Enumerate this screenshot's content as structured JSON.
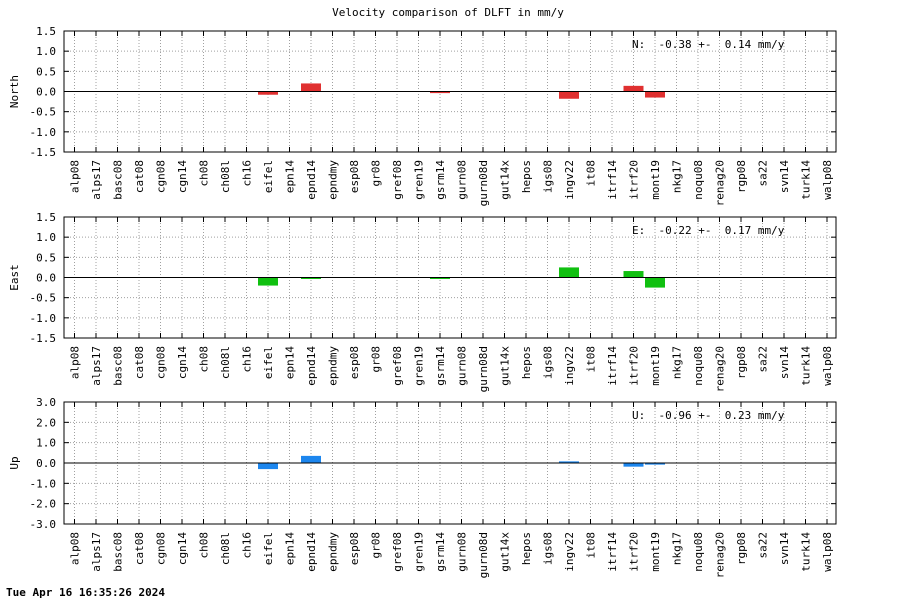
{
  "title": "Velocity comparison of DLFT in mm/y",
  "timestamp": "Tue Apr 16 16:35:26 2024",
  "chart_data": [
    {
      "type": "bar",
      "ylabel": "North",
      "ylim": [
        -1.5,
        1.5
      ],
      "yticks": [
        "1.5",
        "1.0",
        "0.5",
        "0.0",
        "-0.5",
        "-1.0",
        "-1.5"
      ],
      "ytick_values": [
        1.5,
        1.0,
        0.5,
        0.0,
        -0.5,
        -1.0,
        -1.5
      ],
      "grid": true,
      "color": "#e03030",
      "annotation": "N:  -0.38 +-  0.14 mm/y",
      "categories": [
        "alp08",
        "alps17",
        "basc08",
        "cat08",
        "cgn08",
        "cgn14",
        "ch08",
        "ch08l",
        "ch16",
        "eifel",
        "epn14",
        "epnd14",
        "epndmy",
        "esp08",
        "gr08",
        "gref08",
        "gren19",
        "gsrm14",
        "gurn08",
        "gurn08d",
        "gut14x",
        "hepos",
        "igs08",
        "ingv22",
        "it08",
        "itrf14",
        "itrf20",
        "mont19",
        "nkg17",
        "noqu08",
        "renag20",
        "rgp08",
        "sa22",
        "svn14",
        "turk14",
        "walp08"
      ],
      "values": [
        null,
        null,
        null,
        null,
        null,
        null,
        null,
        null,
        null,
        -0.08,
        null,
        0.2,
        null,
        null,
        null,
        null,
        null,
        -0.04,
        null,
        null,
        null,
        null,
        null,
        -0.18,
        null,
        null,
        0.14,
        -0.15,
        null,
        null,
        null,
        null,
        null,
        null,
        null,
        null
      ]
    },
    {
      "type": "bar",
      "ylabel": "East",
      "ylim": [
        -1.5,
        1.5
      ],
      "yticks": [
        "1.5",
        "1.0",
        "0.5",
        "0.0",
        "-0.5",
        "-1.0",
        "-1.5"
      ],
      "ytick_values": [
        1.5,
        1.0,
        0.5,
        0.0,
        -0.5,
        -1.0,
        -1.5
      ],
      "grid": true,
      "color": "#10c010",
      "annotation": "E:  -0.22 +-  0.17 mm/y",
      "categories": [
        "alp08",
        "alps17",
        "basc08",
        "cat08",
        "cgn08",
        "cgn14",
        "ch08",
        "ch08l",
        "ch16",
        "eifel",
        "epn14",
        "epnd14",
        "epndmy",
        "esp08",
        "gr08",
        "gref08",
        "gren19",
        "gsrm14",
        "gurn08",
        "gurn08d",
        "gut14x",
        "hepos",
        "igs08",
        "ingv22",
        "it08",
        "itrf14",
        "itrf20",
        "mont19",
        "nkg17",
        "noqu08",
        "renag20",
        "rgp08",
        "sa22",
        "svn14",
        "turk14",
        "walp08"
      ],
      "values": [
        null,
        null,
        null,
        null,
        null,
        null,
        null,
        null,
        null,
        -0.2,
        null,
        -0.03,
        null,
        null,
        null,
        null,
        null,
        -0.02,
        null,
        null,
        null,
        null,
        null,
        0.25,
        null,
        null,
        0.16,
        -0.25,
        null,
        null,
        null,
        null,
        null,
        null,
        null,
        null
      ]
    },
    {
      "type": "bar",
      "ylabel": "Up",
      "ylim": [
        -3.0,
        3.0
      ],
      "yticks": [
        "3.0",
        "2.0",
        "1.0",
        "0.0",
        "-1.0",
        "-2.0",
        "-3.0"
      ],
      "ytick_values": [
        3.0,
        2.0,
        1.0,
        0.0,
        -1.0,
        -2.0,
        -3.0
      ],
      "grid": true,
      "color": "#1c86ee",
      "annotation": "U:  -0.96 +-  0.23 mm/y",
      "categories": [
        "alp08",
        "alps17",
        "basc08",
        "cat08",
        "cgn08",
        "cgn14",
        "ch08",
        "ch08l",
        "ch16",
        "eifel",
        "epn14",
        "epnd14",
        "epndmy",
        "esp08",
        "gr08",
        "gref08",
        "gren19",
        "gsrm14",
        "gurn08",
        "gurn08d",
        "gut14x",
        "hepos",
        "igs08",
        "ingv22",
        "it08",
        "itrf14",
        "itrf20",
        "mont19",
        "nkg17",
        "noqu08",
        "renag20",
        "rgp08",
        "sa22",
        "svn14",
        "turk14",
        "walp08"
      ],
      "values": [
        null,
        null,
        null,
        null,
        null,
        null,
        null,
        null,
        null,
        -0.3,
        null,
        0.35,
        null,
        null,
        null,
        null,
        null,
        null,
        null,
        null,
        null,
        null,
        null,
        0.08,
        null,
        null,
        -0.18,
        -0.08,
        null,
        null,
        null,
        null,
        null,
        null,
        null,
        null
      ]
    }
  ]
}
